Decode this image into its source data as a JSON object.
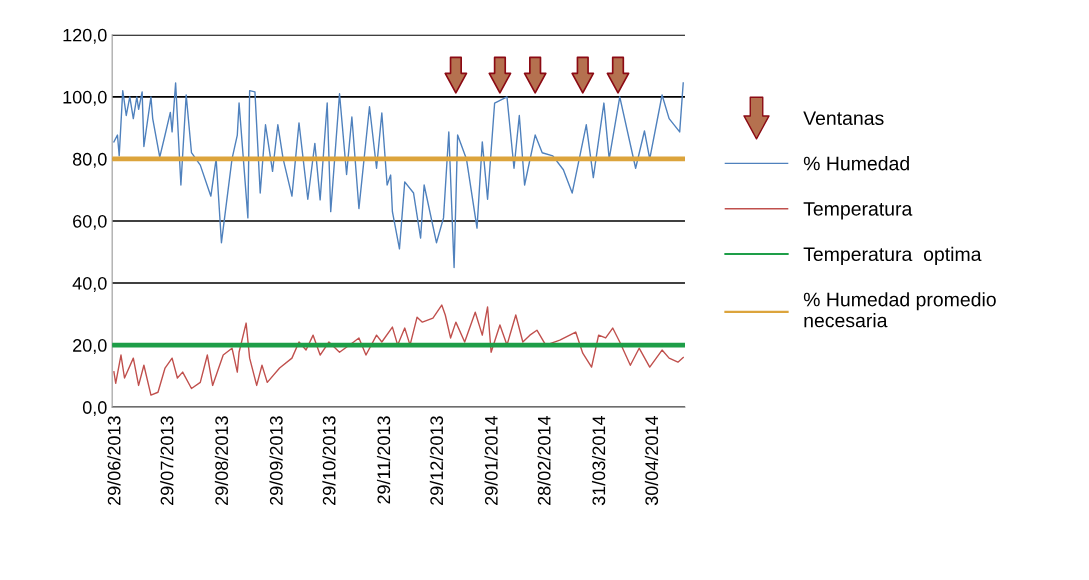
{
  "chart_data": {
    "type": "line",
    "ylim": [
      0,
      120
    ],
    "yticks": [
      {
        "value": 0,
        "label": "0,0"
      },
      {
        "value": 20,
        "label": "20,0"
      },
      {
        "value": 40,
        "label": "40,0"
      },
      {
        "value": 60,
        "label": "60,0"
      },
      {
        "value": 80,
        "label": "80,0"
      },
      {
        "value": 100,
        "label": "100,0"
      },
      {
        "value": 120,
        "label": "120,0"
      }
    ],
    "xlim": [
      "2013-06-27",
      "2014-05-18"
    ],
    "xticks": [
      {
        "value": "2013-06-29",
        "label": "29/06/2013"
      },
      {
        "value": "2013-07-29",
        "label": "29/07/2013"
      },
      {
        "value": "2013-08-29",
        "label": "29/08/2013"
      },
      {
        "value": "2013-09-29",
        "label": "29/09/2013"
      },
      {
        "value": "2013-10-29",
        "label": "29/10/2013"
      },
      {
        "value": "2013-11-29",
        "label": "29/11/2013"
      },
      {
        "value": "2013-12-29",
        "label": "29/12/2013"
      },
      {
        "value": "2014-01-29",
        "label": "29/01/2014"
      },
      {
        "value": "2014-02-28",
        "label": "28/02/2014"
      },
      {
        "value": "2014-03-31",
        "label": "31/03/2014"
      },
      {
        "value": "2014-04-30",
        "label": "30/04/2014"
      }
    ],
    "grid": "y",
    "legend": "right",
    "series": [
      {
        "name": "Ventanas",
        "type": "scatter",
        "color": "#b5714f",
        "x": [
          "2014-01-08",
          "2014-02-02",
          "2014-02-22",
          "2014-03-21",
          "2014-04-10"
        ],
        "values": [
          107,
          107,
          107,
          107,
          107
        ]
      },
      {
        "name": "% Humedad",
        "color": "#4f81bd",
        "x": [
          "2013-06-28",
          "2013-06-30",
          "2013-07-01",
          "2013-07-03",
          "2013-07-05",
          "2013-07-07",
          "2013-07-09",
          "2013-07-11",
          "2013-07-12",
          "2013-07-14",
          "2013-07-15",
          "2013-07-19",
          "2013-07-20",
          "2013-07-24",
          "2013-07-27",
          "2013-07-30",
          "2013-07-31",
          "2013-08-02",
          "2013-08-05",
          "2013-08-08",
          "2013-08-11",
          "2013-08-16",
          "2013-08-22",
          "2013-08-25",
          "2013-08-28",
          "2013-09-03",
          "2013-09-06",
          "2013-09-07",
          "2013-09-12",
          "2013-09-13",
          "2013-09-16",
          "2013-09-19",
          "2013-09-22",
          "2013-09-26",
          "2013-09-29",
          "2013-10-02",
          "2013-10-07",
          "2013-10-11",
          "2013-10-16",
          "2013-10-20",
          "2013-10-23",
          "2013-10-27",
          "2013-10-29",
          "2013-11-03",
          "2013-11-07",
          "2013-11-10",
          "2013-11-14",
          "2013-11-20",
          "2013-11-24",
          "2013-11-27",
          "2013-11-30",
          "2013-12-02",
          "2013-12-03",
          "2013-12-07",
          "2013-12-10",
          "2013-12-15",
          "2013-12-19",
          "2013-12-21",
          "2013-12-28",
          "2014-01-01",
          "2014-01-04",
          "2014-01-07",
          "2014-01-09",
          "2014-01-14",
          "2014-01-20",
          "2014-01-23",
          "2014-01-26",
          "2014-01-30",
          "2014-02-06",
          "2014-02-10",
          "2014-02-13",
          "2014-02-16",
          "2014-02-22",
          "2014-02-26",
          "2014-03-04",
          "2014-03-10",
          "2014-03-15",
          "2014-03-23",
          "2014-03-27",
          "2014-04-02",
          "2014-04-05",
          "2014-04-11",
          "2014-04-20",
          "2014-04-25",
          "2014-04-28",
          "2014-05-05",
          "2014-05-09",
          "2014-05-15",
          "2014-05-17"
        ],
        "values": [
          85.5,
          87.7,
          81,
          102,
          94,
          100,
          93,
          100,
          96,
          101.6,
          84,
          100,
          93,
          80.6,
          87.7,
          95,
          88.7,
          104.5,
          71.6,
          100.6,
          82,
          78,
          68,
          80,
          53,
          80,
          87.7,
          98,
          61,
          102,
          101.6,
          69,
          91,
          76,
          91,
          80,
          68,
          91.6,
          67,
          85,
          66.8,
          98,
          63,
          101,
          75,
          93.5,
          64,
          96.8,
          77,
          94.8,
          71.6,
          74.8,
          63,
          51,
          72.6,
          69,
          54.5,
          71.6,
          53,
          61,
          88.7,
          45,
          87.7,
          80,
          57.7,
          85.5,
          67,
          98,
          100,
          77,
          94,
          71.6,
          87.7,
          82,
          81,
          76.5,
          69,
          91,
          74,
          98,
          80,
          100,
          77,
          89,
          80,
          100.6,
          93,
          88.7,
          104.5
        ]
      },
      {
        "name": "Temperatura",
        "color": "#c0504d",
        "x": [
          "2013-06-28",
          "2013-06-29",
          "2013-07-02",
          "2013-07-04",
          "2013-07-09",
          "2013-07-12",
          "2013-07-15",
          "2013-07-19",
          "2013-07-23",
          "2013-07-27",
          "2013-07-31",
          "2013-08-03",
          "2013-08-06",
          "2013-08-11",
          "2013-08-16",
          "2013-08-20",
          "2013-08-23",
          "2013-08-29",
          "2013-09-03",
          "2013-09-06",
          "2013-09-07",
          "2013-09-11",
          "2013-09-13",
          "2013-09-17",
          "2013-09-20",
          "2013-09-23",
          "2013-09-30",
          "2013-10-07",
          "2013-10-11",
          "2013-10-15",
          "2013-10-19",
          "2013-10-23",
          "2013-10-28",
          "2013-11-03",
          "2013-11-11",
          "2013-11-14",
          "2013-11-18",
          "2013-11-24",
          "2013-11-27",
          "2013-12-03",
          "2013-12-06",
          "2013-12-10",
          "2013-12-13",
          "2013-12-17",
          "2013-12-20",
          "2013-12-26",
          "2013-12-31",
          "2014-01-02",
          "2014-01-05",
          "2014-01-08",
          "2014-01-13",
          "2014-01-19",
          "2014-01-23",
          "2014-01-26",
          "2014-01-28",
          "2014-02-02",
          "2014-02-06",
          "2014-02-11",
          "2014-02-15",
          "2014-02-19",
          "2014-02-23",
          "2014-02-28",
          "2014-03-08",
          "2014-03-17",
          "2014-03-21",
          "2014-03-26",
          "2014-03-30",
          "2014-04-03",
          "2014-04-07",
          "2014-04-11",
          "2014-04-17",
          "2014-04-22",
          "2014-04-28",
          "2014-05-05",
          "2014-05-09",
          "2014-05-14",
          "2014-05-17"
        ],
        "values": [
          11.4,
          7.7,
          16.8,
          9.4,
          15.8,
          7,
          13.5,
          3.9,
          4.8,
          12.6,
          15.8,
          9.4,
          11.3,
          6,
          8,
          16.8,
          7,
          16.8,
          19,
          11.3,
          17.7,
          27.1,
          15.8,
          7,
          13.5,
          8,
          12.6,
          15.8,
          21,
          18.4,
          23.2,
          16.8,
          21,
          17.7,
          21,
          22.3,
          16.8,
          23.2,
          21,
          25.8,
          20,
          25.5,
          20,
          29,
          27.4,
          28.7,
          32.9,
          29.7,
          22.3,
          27.4,
          21,
          30.6,
          23.2,
          32.3,
          17.7,
          26.5,
          20,
          29.7,
          21,
          23.2,
          24.8,
          20,
          21.6,
          24.2,
          17.4,
          12.9,
          23.2,
          22.3,
          25.5,
          21,
          13.5,
          19,
          12.9,
          18.4,
          15.8,
          14.5,
          16
        ]
      }
    ],
    "ref_lines": [
      {
        "axis": "y",
        "value": 20,
        "label": "Temperatura  optima",
        "color": "#1e9e48"
      },
      {
        "axis": "y",
        "value": 80,
        "label": "% Humedad promedio\nnecesaria",
        "color": "#dca43c"
      }
    ]
  }
}
